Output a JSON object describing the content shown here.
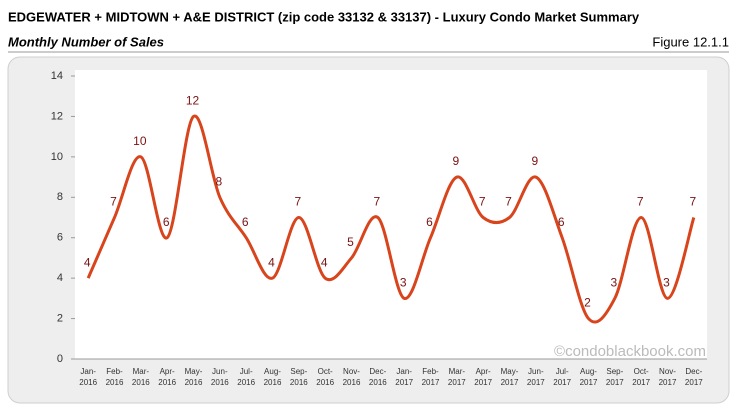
{
  "chart_data": {
    "type": "line",
    "title": "EDGEWATER + MIDTOWN + A&E DISTRICT (zip code 33132 & 33137) - Luxury Condo Market Summary",
    "subtitle": "Monthly Number of Sales",
    "figure_label": "Figure 12.1.1",
    "watermark": "©condoblackbook.com",
    "categories": [
      "Jan-2016",
      "Feb-2016",
      "Mar-2016",
      "Apr-2016",
      "May-2016",
      "Jun-2016",
      "Jul-2016",
      "Aug-2016",
      "Sep-2016",
      "Oct-2016",
      "Nov-2016",
      "Dec-2016",
      "Jan-2017",
      "Feb-2017",
      "Mar-2017",
      "Apr-2017",
      "May-2017",
      "Jun-2017",
      "Jul-2017",
      "Aug-2017",
      "Sep-2017",
      "Oct-2017",
      "Nov-2017",
      "Dec-2017"
    ],
    "values": [
      4,
      7,
      10,
      6,
      12,
      8,
      6,
      4,
      7,
      4,
      5,
      7,
      3,
      6,
      9,
      7,
      7,
      9,
      6,
      2,
      3,
      7,
      3,
      7
    ],
    "color": "#d8441c",
    "label_color": "#7a1212",
    "ylim": [
      0,
      14
    ],
    "yticks": [
      0,
      2,
      4,
      6,
      8,
      10,
      12,
      14
    ],
    "grid": false
  }
}
